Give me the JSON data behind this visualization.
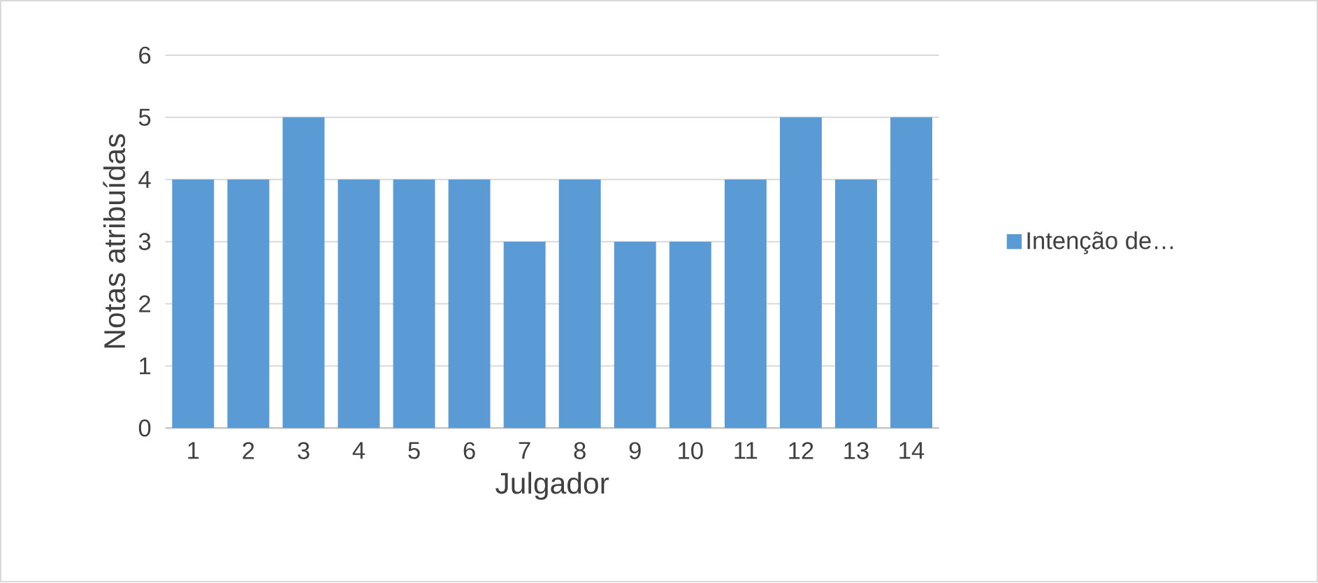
{
  "chart_data": {
    "type": "bar",
    "xlabel": "Julgador",
    "ylabel": "Notas atribuídas",
    "categories": [
      "1",
      "2",
      "3",
      "4",
      "5",
      "6",
      "7",
      "8",
      "9",
      "10",
      "11",
      "12",
      "13",
      "14"
    ],
    "series": [
      {
        "name": "Intenção de…",
        "color": "#5b9bd5",
        "values": [
          4,
          4,
          5,
          4,
          4,
          4,
          3,
          4,
          3,
          3,
          4,
          5,
          4,
          5
        ]
      }
    ],
    "ylim": [
      0,
      6
    ],
    "yticks": [
      0,
      1,
      2,
      3,
      4,
      5,
      6
    ],
    "grid": "y",
    "legend": "right"
  }
}
